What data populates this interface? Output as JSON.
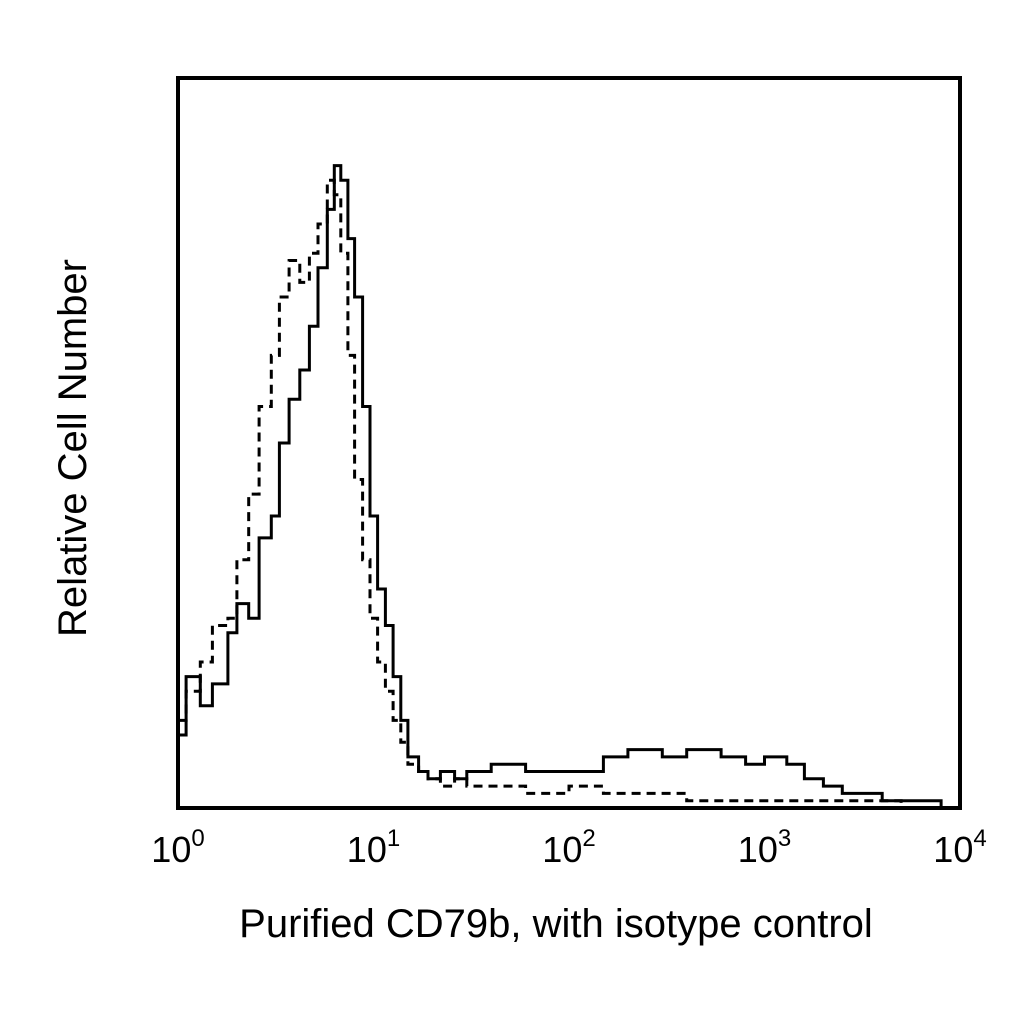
{
  "chart_data": {
    "type": "line",
    "title": "",
    "xlabel": "Purified CD79b, with isotype control",
    "ylabel": "Relative Cell Number",
    "x_scale": "log",
    "xlim": [
      1,
      10000
    ],
    "ylim": [
      0,
      100
    ],
    "grid": false,
    "legend": "none",
    "x_ticks": [
      {
        "value": 1,
        "base": "10",
        "exp": "0"
      },
      {
        "value": 10,
        "base": "10",
        "exp": "1"
      },
      {
        "value": 100,
        "base": "10",
        "exp": "2"
      },
      {
        "value": 1000,
        "base": "10",
        "exp": "3"
      },
      {
        "value": 10000,
        "base": "10",
        "exp": "4"
      }
    ],
    "series": [
      {
        "style": "solid",
        "color": "#000000",
        "x": [
          1.0,
          1.1,
          1.3,
          1.5,
          1.8,
          2.0,
          2.3,
          2.6,
          3.0,
          3.3,
          3.7,
          4.2,
          4.7,
          5.2,
          5.8,
          6.3,
          6.8,
          7.4,
          8.0,
          8.8,
          9.6,
          10.5,
          11.5,
          12.6,
          13.8,
          15.0,
          17.0,
          19.0,
          22.0,
          26.0,
          30.0,
          40.0,
          60.0,
          100.0,
          150.0,
          200.0,
          300.0,
          400.0,
          600.0,
          800.0,
          1000.0,
          1300.0,
          1600.0,
          2000.0,
          2500.0,
          3000.0,
          4000.0,
          5000.0,
          6000.0,
          8000.0,
          10000.0
        ],
        "y": [
          10,
          18,
          14,
          17,
          24,
          28,
          26,
          37,
          40,
          50,
          56,
          60,
          66,
          74,
          82,
          88,
          86,
          78,
          70,
          55,
          40,
          30,
          25,
          18,
          12,
          7,
          5,
          4,
          5,
          4,
          5,
          6,
          5,
          5,
          7,
          8,
          7,
          8,
          7,
          6,
          7,
          6,
          4,
          3,
          2,
          2,
          1,
          1,
          1,
          0,
          0
        ]
      },
      {
        "style": "dashed",
        "color": "#000000",
        "x": [
          1.0,
          1.1,
          1.3,
          1.5,
          1.8,
          2.0,
          2.3,
          2.6,
          3.0,
          3.3,
          3.7,
          4.2,
          4.7,
          5.2,
          5.8,
          6.3,
          6.8,
          7.4,
          8.0,
          8.8,
          9.6,
          10.5,
          11.5,
          12.6,
          13.8,
          15.0,
          17.0,
          19.0,
          22.0,
          26.0,
          30.0,
          40.0,
          60.0,
          100.0,
          150.0,
          200.0,
          300.0,
          400.0,
          600.0,
          1000.0,
          2000.0,
          5000.0,
          10000.0
        ],
        "y": [
          12,
          16,
          20,
          25,
          26,
          34,
          43,
          55,
          62,
          70,
          75,
          72,
          76,
          80,
          86,
          84,
          76,
          62,
          45,
          34,
          26,
          20,
          16,
          12,
          9,
          6,
          5,
          4,
          3,
          4,
          3,
          3,
          2,
          3,
          2,
          2,
          2,
          1,
          1,
          1,
          1,
          0,
          0
        ]
      }
    ]
  }
}
